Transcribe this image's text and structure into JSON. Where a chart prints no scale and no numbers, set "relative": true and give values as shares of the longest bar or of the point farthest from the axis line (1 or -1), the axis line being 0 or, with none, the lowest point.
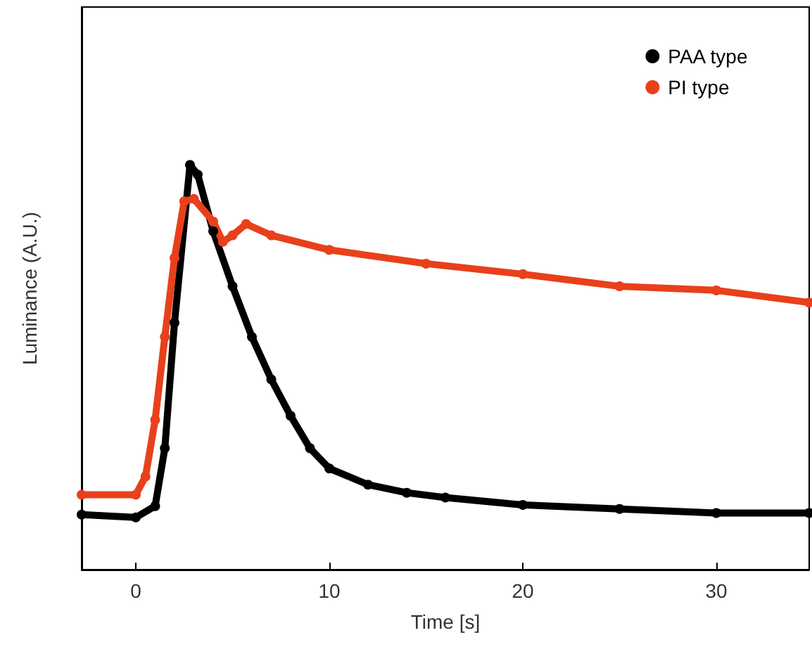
{
  "chart_data": {
    "type": "line",
    "relative": true,
    "xlabel": "Time [s]",
    "ylabel": "Luminance (A.U.)",
    "xlim": [
      -2.8,
      34.8
    ],
    "xticks": [
      0,
      10,
      20,
      30
    ],
    "tick_labels": "x",
    "grid": false,
    "legend": "top right",
    "marker": "circle",
    "series": [
      {
        "name": "PAA type",
        "color": "#000000",
        "x": [
          -2.8,
          0,
          1,
          1.5,
          2,
          2.8,
          3.2,
          4,
          5,
          6,
          7,
          8,
          9,
          10,
          12,
          14,
          16,
          20,
          25,
          30,
          34.8
        ],
        "values": [
          0.136,
          0.129,
          0.157,
          0.3,
          0.61,
          1,
          0.976,
          0.836,
          0.7,
          0.575,
          0.47,
          0.38,
          0.3,
          0.25,
          0.21,
          0.19,
          0.178,
          0.16,
          0.15,
          0.14,
          0.14
        ]
      },
      {
        "name": "PI type",
        "color": "#e8401c",
        "x": [
          -2.8,
          0,
          0.5,
          1,
          1.5,
          2,
          2.5,
          3,
          4,
          4.5,
          5,
          5.7,
          7,
          10,
          15,
          20,
          25,
          30,
          34.8
        ],
        "values": [
          0.185,
          0.185,
          0.23,
          0.37,
          0.575,
          0.77,
          0.91,
          0.916,
          0.86,
          0.81,
          0.826,
          0.854,
          0.826,
          0.79,
          0.756,
          0.73,
          0.7,
          0.69,
          0.66
        ]
      }
    ]
  }
}
